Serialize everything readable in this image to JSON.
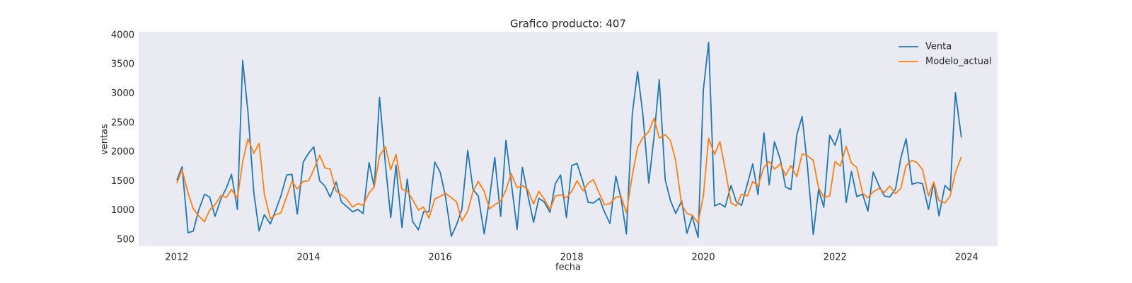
{
  "chart_data": {
    "type": "line",
    "title": "Grafico producto: 407",
    "x_label": "fecha",
    "y_label": "ventas",
    "x": [
      2012,
      2012.08,
      2012.17,
      2012.25,
      2012.33,
      2012.42,
      2012.5,
      2012.58,
      2012.67,
      2012.75,
      2012.83,
      2012.92,
      2013,
      2013.08,
      2013.17,
      2013.25,
      2013.33,
      2013.42,
      2013.5,
      2013.58,
      2013.67,
      2013.75,
      2013.83,
      2013.92,
      2014,
      2014.08,
      2014.17,
      2014.25,
      2014.33,
      2014.42,
      2014.5,
      2014.58,
      2014.67,
      2014.75,
      2014.83,
      2014.92,
      2015,
      2015.08,
      2015.17,
      2015.25,
      2015.33,
      2015.42,
      2015.5,
      2015.58,
      2015.67,
      2015.75,
      2015.83,
      2015.92,
      2016,
      2016.08,
      2016.17,
      2016.25,
      2016.33,
      2016.42,
      2016.5,
      2016.58,
      2016.67,
      2016.75,
      2016.83,
      2016.92,
      2017,
      2017.08,
      2017.17,
      2017.25,
      2017.33,
      2017.42,
      2017.5,
      2017.58,
      2017.67,
      2017.75,
      2017.83,
      2017.92,
      2018,
      2018.08,
      2018.17,
      2018.25,
      2018.33,
      2018.42,
      2018.5,
      2018.58,
      2018.67,
      2018.75,
      2018.83,
      2018.92,
      2019,
      2019.08,
      2019.17,
      2019.25,
      2019.33,
      2019.42,
      2019.5,
      2019.58,
      2019.67,
      2019.75,
      2019.83,
      2019.92,
      2020,
      2020.08,
      2020.17,
      2020.25,
      2020.33,
      2020.42,
      2020.5,
      2020.58,
      2020.67,
      2020.75,
      2020.83,
      2020.92,
      2021,
      2021.08,
      2021.17,
      2021.25,
      2021.33,
      2021.42,
      2021.5,
      2021.58,
      2021.67,
      2021.75,
      2021.83,
      2021.92,
      2022,
      2022.08,
      2022.17,
      2022.25,
      2022.33,
      2022.42,
      2022.5,
      2022.58,
      2022.67,
      2022.75,
      2022.83,
      2022.92,
      2023,
      2023.08,
      2023.17,
      2023.25,
      2023.33,
      2023.42,
      2023.5,
      2023.58,
      2023.67,
      2023.75,
      2023.83,
      2023.92
    ],
    "series": [
      {
        "name": "Venta",
        "color": "#1f77b4",
        "values": [
          1520,
          1750,
          620,
          650,
          1000,
          1280,
          1230,
          900,
          1200,
          1380,
          1620,
          1020,
          3570,
          2700,
          1300,
          650,
          930,
          770,
          1000,
          1250,
          1610,
          1620,
          940,
          1830,
          1980,
          2090,
          1510,
          1420,
          1230,
          1490,
          1150,
          1070,
          980,
          1020,
          950,
          1820,
          1400,
          2940,
          1780,
          880,
          1780,
          710,
          1540,
          820,
          670,
          980,
          980,
          1830,
          1660,
          1250,
          560,
          760,
          1020,
          2030,
          1360,
          1250,
          600,
          1200,
          1910,
          900,
          2200,
          1490,
          680,
          1740,
          1280,
          800,
          1210,
          1150,
          970,
          1460,
          1610,
          880,
          1770,
          1810,
          1490,
          1140,
          1130,
          1210,
          970,
          780,
          1590,
          1200,
          600,
          2650,
          3380,
          2650,
          1470,
          2260,
          3240,
          1530,
          1170,
          950,
          1170,
          610,
          900,
          540,
          3070,
          3880,
          1080,
          1120,
          1060,
          1430,
          1150,
          1090,
          1460,
          1800,
          1270,
          2330,
          1440,
          2180,
          1870,
          1400,
          1360,
          2300,
          2610,
          1780,
          590,
          1360,
          1060,
          2290,
          2120,
          2400,
          1140,
          1670,
          1240,
          1280,
          990,
          1660,
          1420,
          1250,
          1230,
          1370,
          1900,
          2230,
          1450,
          1480,
          1460,
          1020,
          1480,
          910,
          1430,
          1340,
          3020,
          2250
        ]
      },
      {
        "name": "Modelo_actual",
        "color": "#ff7f0e",
        "values": [
          1470,
          1700,
          1300,
          1030,
          910,
          810,
          1010,
          1100,
          1260,
          1220,
          1360,
          1210,
          1830,
          2230,
          1980,
          2150,
          1280,
          860,
          930,
          960,
          1240,
          1500,
          1370,
          1500,
          1510,
          1700,
          1950,
          1730,
          1710,
          1330,
          1270,
          1200,
          1060,
          1120,
          1090,
          1300,
          1410,
          1940,
          2090,
          1700,
          1960,
          1360,
          1340,
          1190,
          1010,
          1060,
          870,
          1200,
          1240,
          1300,
          1220,
          1150,
          820,
          990,
          1330,
          1500,
          1330,
          1030,
          1100,
          1160,
          1350,
          1630,
          1390,
          1430,
          1360,
          1110,
          1330,
          1200,
          1020,
          1250,
          1270,
          1220,
          1330,
          1510,
          1340,
          1470,
          1530,
          1290,
          1100,
          1120,
          1230,
          1240,
          960,
          1600,
          2080,
          2250,
          2350,
          2580,
          2240,
          2300,
          2200,
          1850,
          1100,
          950,
          920,
          790,
          1250,
          2240,
          1960,
          2180,
          1720,
          1130,
          1080,
          1280,
          1250,
          1500,
          1420,
          1740,
          1840,
          1710,
          1800,
          1600,
          1770,
          1580,
          1970,
          1940,
          1860,
          1390,
          1230,
          1250,
          1840,
          1760,
          2100,
          1810,
          1740,
          1300,
          1220,
          1320,
          1380,
          1310,
          1420,
          1290,
          1380,
          1770,
          1860,
          1820,
          1700,
          1250,
          1490,
          1170,
          1130,
          1250,
          1650,
          1920
        ]
      }
    ],
    "xlim": [
      2011.42,
      2024.47
    ],
    "xticks": [
      2012,
      2014,
      2016,
      2018,
      2020,
      2022,
      2024
    ],
    "ylim": [
      390,
      4060
    ],
    "yticks": [
      500,
      1000,
      1500,
      2000,
      2500,
      3000,
      3500,
      4000
    ],
    "grid": false,
    "legend": "upper right"
  }
}
